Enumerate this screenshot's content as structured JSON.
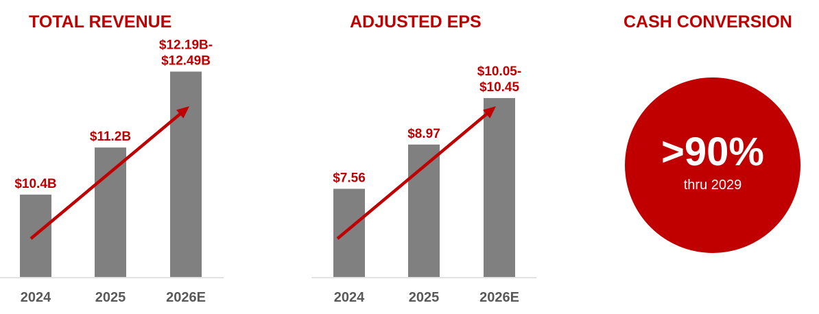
{
  "colors": {
    "accent": "#c00000",
    "bar": "#808080",
    "axis": "#d9d9d9",
    "tick": "#595959"
  },
  "chart_data": [
    {
      "type": "bar",
      "title": "TOTAL REVENUE",
      "categories": [
        "2024",
        "2025",
        "2026E"
      ],
      "values": [
        10.4,
        11.2,
        12.49
      ],
      "value_labels": [
        [
          "$10.4B"
        ],
        [
          "$11.2B"
        ],
        [
          "$12.19B-",
          "$12.49B"
        ]
      ],
      "ylim": [
        9.0,
        12.6
      ],
      "trend_arrow": true
    },
    {
      "type": "bar",
      "title": "ADJUSTED EPS",
      "categories": [
        "2024",
        "2025",
        "2026E"
      ],
      "values": [
        7.56,
        8.97,
        10.45
      ],
      "value_labels": [
        [
          "$7.56"
        ],
        [
          "$8.97"
        ],
        [
          "$10.05-",
          "$10.45"
        ]
      ],
      "ylim": [
        4.75,
        11.5
      ],
      "trend_arrow": true
    }
  ],
  "cash_conversion": {
    "title": "CASH CONVERSION",
    "value": ">90%",
    "caption": "thru 2029"
  }
}
